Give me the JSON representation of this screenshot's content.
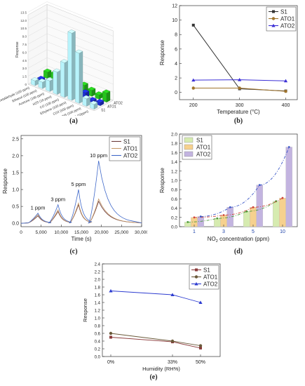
{
  "captions": {
    "a": "(a)",
    "b": "(b)",
    "c": "(c)",
    "d": "(d)",
    "e": "(e)"
  },
  "chart_data": [
    {
      "id": "a",
      "type": "bar",
      "title": "",
      "zlabel": "Response",
      "zlim": [
        0,
        13
      ],
      "z_ticks": [
        "0",
        "1.5",
        "3.0",
        "4.5",
        "6.0",
        "7.5",
        "9.0",
        "10.5",
        "12.0",
        "13.5"
      ],
      "categories": [
        "Acetaldehyde (100 ppm)",
        "Ethanol (100 ppm)",
        "Acetone (100 ppm)",
        "H2S (10 ppm)",
        "CO (100 ppm)",
        "Ethylene (100 ppm)",
        "CO2 (500 ppm)",
        "NH3 (100 ppm)",
        "NO2 (10ppm)"
      ],
      "series": [
        {
          "name": "S1",
          "color": "#b7f3fb",
          "values": [
            0.9,
            1.2,
            2.0,
            4.2,
            6.5,
            12.6,
            9.4,
            1.4,
            0.9
          ]
        },
        {
          "name": "ATO1",
          "color": "#1d2fd1",
          "values": [
            0.5,
            0.6,
            0.8,
            2.5,
            5.2,
            3.4,
            1.3,
            0.4,
            0.6
          ]
        },
        {
          "name": "ATO2",
          "color": "#25c31d",
          "values": [
            1.2,
            1.4,
            0.9,
            1.0,
            1.3,
            1.5,
            1.1,
            0.8,
            1.7
          ]
        }
      ]
    },
    {
      "id": "b",
      "type": "line",
      "xlabel": "Temperature (°C)",
      "ylabel": "Response",
      "xlim": [
        170,
        425
      ],
      "ylim": [
        -1,
        12
      ],
      "x_ticks": [
        200,
        300,
        400
      ],
      "y_ticks": [
        0,
        2,
        4,
        6,
        8,
        10,
        12
      ],
      "x": [
        200,
        300,
        400
      ],
      "series": [
        {
          "name": "S1",
          "color": "#333333",
          "marker": "square",
          "values": [
            9.3,
            0.5,
            0.2
          ]
        },
        {
          "name": "ATO1",
          "color": "#a0742c",
          "marker": "circle",
          "values": [
            0.6,
            0.6,
            0.15
          ]
        },
        {
          "name": "ATO2",
          "color": "#3b2fd6",
          "marker": "triangle",
          "values": [
            1.7,
            1.75,
            1.6
          ]
        }
      ],
      "legend": "top-right"
    },
    {
      "id": "c",
      "type": "line",
      "xlabel": "Time (s)",
      "ylabel": "Response",
      "xlim": [
        0,
        30000
      ],
      "ylim": [
        -0.1,
        2.6
      ],
      "x_ticks": [
        "0",
        "5,000",
        "10,000",
        "15,000",
        "20,000",
        "25,000",
        "30,000"
      ],
      "y_ticks": [
        0,
        0.5,
        1.0,
        1.5,
        2.0,
        2.5
      ],
      "pulses": [
        {
          "label": "1 ppm",
          "start": 1500,
          "peak": 4200,
          "end": 7500
        },
        {
          "label": "3 ppm",
          "start": 6800,
          "peak": 9200,
          "end": 12500
        },
        {
          "label": "5 ppm",
          "start": 12000,
          "peak": 14300,
          "end": 17500
        },
        {
          "label": "10 ppm",
          "start": 16800,
          "peak": 19300,
          "end": 27000
        }
      ],
      "series": [
        {
          "name": "S1",
          "color": "#6b3b3b",
          "peaks": [
            0.22,
            0.35,
            0.55,
            0.65
          ]
        },
        {
          "name": "ATO1",
          "color": "#c69a6a",
          "peaks": [
            0.26,
            0.4,
            0.6,
            0.72
          ]
        },
        {
          "name": "ATO2",
          "color": "#3f68c9",
          "peaks": [
            0.3,
            0.55,
            1.0,
            1.85
          ]
        }
      ],
      "legend": "top-right"
    },
    {
      "id": "d",
      "type": "bar",
      "xlabel": "NO",
      "xlabel_sub": "2",
      "xlabel_rest": " concentration (ppm)",
      "ylabel": "Response",
      "ylim": [
        0,
        2.0
      ],
      "y_ticks": [
        "0.0",
        "0.2",
        "0.4",
        "0.6",
        "0.8",
        "1.0",
        "1.2",
        "1.4",
        "1.6",
        "1.8",
        "2.0"
      ],
      "categories": [
        "1",
        "3",
        "5",
        "10"
      ],
      "series": [
        {
          "name": "S1",
          "color": "#d6ebb0",
          "values": [
            0.1,
            0.18,
            0.33,
            0.55
          ]
        },
        {
          "name": "ATO1",
          "color": "#f6d18e",
          "values": [
            0.2,
            0.25,
            0.42,
            0.62
          ]
        },
        {
          "name": "ATO2",
          "color": "#c3b4e0",
          "values": [
            0.22,
            0.42,
            0.9,
            1.72
          ]
        }
      ],
      "legend": "top-left"
    },
    {
      "id": "e",
      "type": "line",
      "xlabel": "Humidity (RH%)",
      "ylabel": "Response",
      "ylim": [
        0,
        2.4
      ],
      "y_ticks": [
        "0.0",
        "0.2",
        "0.4",
        "0.6",
        "0.8",
        "1.0",
        "1.2",
        "1.4",
        "1.6",
        "1.8",
        "2.0",
        "2.2",
        "2.4"
      ],
      "categories": [
        "0%",
        "33%",
        "50%"
      ],
      "series": [
        {
          "name": "S1",
          "color": "#8b3b3b",
          "marker": "square",
          "values": [
            0.5,
            0.38,
            0.22
          ]
        },
        {
          "name": "ATO1",
          "color": "#6a5a3a",
          "marker": "circle",
          "values": [
            0.6,
            0.4,
            0.28
          ]
        },
        {
          "name": "ATO2",
          "color": "#2d3cd0",
          "marker": "triangle",
          "values": [
            1.7,
            1.6,
            1.4
          ]
        }
      ],
      "legend": "top-right"
    }
  ]
}
